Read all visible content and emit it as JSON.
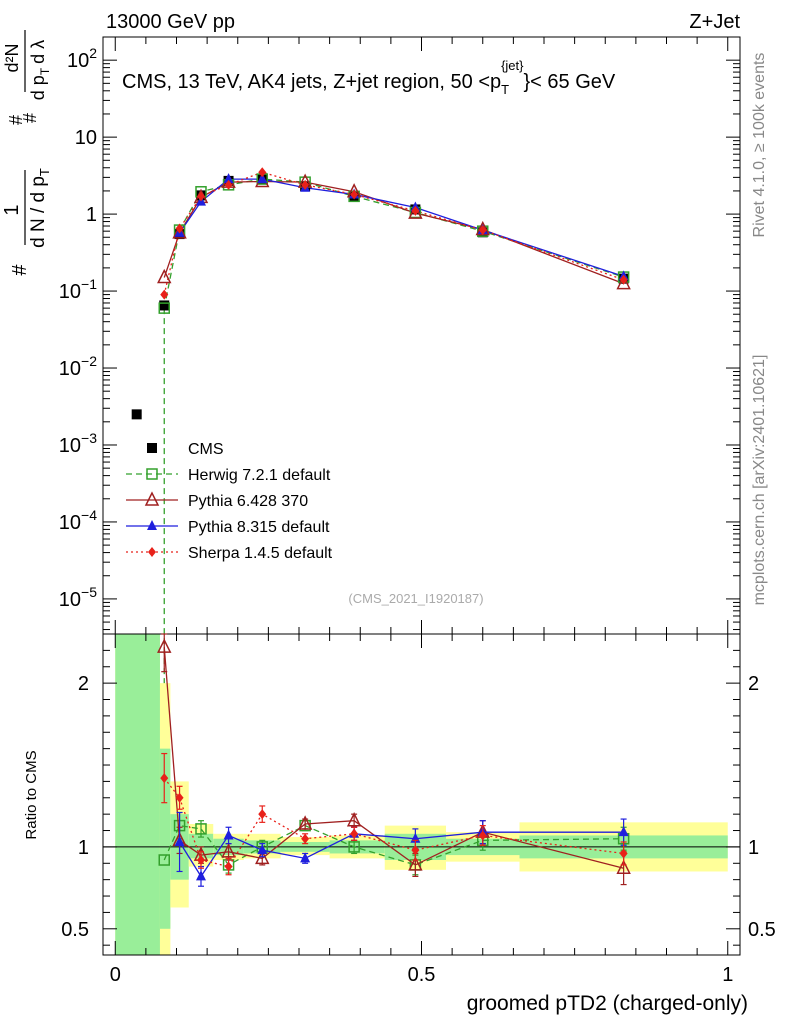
{
  "header": {
    "left": "13000 GeV pp",
    "right": "Z+Jet",
    "side_top": "Rivet 4.1.0, ≥ 100k events",
    "side_bottom": "mcplots.cern.ch [arXiv:2401.10621]"
  },
  "chart_data": {
    "type": "line",
    "title": "CMS, 13 TeV, AK4 jets, Z+jet region, 50 <p_T^{jet}< 65 GeV",
    "title_parts": {
      "pre": "CMS, 13 TeV, AK4 jets, Z+jet region, 50 <p",
      "sup": "{jet}",
      "sub": "T",
      "post": "}< 65 GeV"
    },
    "analysis_id": "(CMS_2021_I1920187)",
    "xlabel": "groomed pTD2 (charged-only)",
    "ylabel": "1/dN/dpT # d²N/dpT dλ",
    "ylabel_parts": {
      "one": "1",
      "hash": "#",
      "dn": "d N / d p",
      "sub": "T",
      "d2n": "d²N",
      "dpt": "d p",
      "dl": "d λ"
    },
    "ratio_ylabel": "Ratio to CMS",
    "xlim": [
      -0.02,
      1.02
    ],
    "ylim_log": [
      3.5e-06,
      200
    ],
    "ratio_ylim": [
      0.34,
      2.3
    ],
    "x_ticks": [
      {
        "value": 0,
        "label": "0"
      },
      {
        "value": 0.5,
        "label": "0.5"
      },
      {
        "value": 1,
        "label": "1"
      }
    ],
    "y_ticks": [
      {
        "value": 1e-05,
        "base": "10",
        "exp": "−5",
        "label": ""
      },
      {
        "value": 0.0001,
        "base": "10",
        "exp": "−4",
        "label": ""
      },
      {
        "value": 0.001,
        "base": "10",
        "exp": "−3",
        "label": ""
      },
      {
        "value": 0.01,
        "base": "10",
        "exp": "−2",
        "label": ""
      },
      {
        "value": 0.1,
        "base": "10",
        "exp": "−1",
        "label": ""
      },
      {
        "value": 1,
        "base": "",
        "exp": "",
        "label": "1"
      },
      {
        "value": 10,
        "base": "",
        "exp": "",
        "label": "10"
      },
      {
        "value": 100,
        "base": "10",
        "exp": "2",
        "label": ""
      }
    ],
    "ratio_ticks": [
      {
        "value": 0.5,
        "label": "0.5"
      },
      {
        "value": 1,
        "label": "1"
      },
      {
        "value": 2,
        "label": "2"
      }
    ],
    "data": {
      "name": "CMS",
      "color": "#000000",
      "x": [
        0.035,
        0.08,
        0.105,
        0.14,
        0.185,
        0.24,
        0.31,
        0.39,
        0.49,
        0.6,
        0.83
      ],
      "y": [
        0.0025,
        0.065,
        0.55,
        1.75,
        2.7,
        2.9,
        2.3,
        1.7,
        1.15,
        0.58,
        0.145
      ]
    },
    "bands": [
      {
        "x0": 0.0,
        "x1": 0.073,
        "inner": [
          0.3,
          2.3
        ],
        "outer": [
          0.3,
          2.3
        ]
      },
      {
        "x0": 0.073,
        "x1": 0.09,
        "inner": [
          0.5,
          1.6
        ],
        "outer": [
          0.3,
          2.0
        ]
      },
      {
        "x0": 0.09,
        "x1": 0.12,
        "inner": [
          0.8,
          1.2
        ],
        "outer": [
          0.63,
          1.4
        ]
      },
      {
        "x0": 0.12,
        "x1": 0.16,
        "inner": [
          0.93,
          1.08
        ],
        "outer": [
          0.88,
          1.14
        ]
      },
      {
        "x0": 0.16,
        "x1": 0.21,
        "inner": [
          0.95,
          1.05
        ],
        "outer": [
          0.92,
          1.08
        ]
      },
      {
        "x0": 0.21,
        "x1": 0.27,
        "inner": [
          0.96,
          1.04
        ],
        "outer": [
          0.93,
          1.08
        ]
      },
      {
        "x0": 0.27,
        "x1": 0.35,
        "inner": [
          0.97,
          1.03
        ],
        "outer": [
          0.95,
          1.06
        ]
      },
      {
        "x0": 0.35,
        "x1": 0.44,
        "inner": [
          0.96,
          1.04
        ],
        "outer": [
          0.93,
          1.07
        ]
      },
      {
        "x0": 0.44,
        "x1": 0.54,
        "inner": [
          0.92,
          1.08
        ],
        "outer": [
          0.86,
          1.13
        ]
      },
      {
        "x0": 0.54,
        "x1": 0.66,
        "inner": [
          0.95,
          1.05
        ],
        "outer": [
          0.91,
          1.09
        ]
      },
      {
        "x0": 0.66,
        "x1": 1.0,
        "inner": [
          0.93,
          1.07
        ],
        "outer": [
          0.85,
          1.15
        ]
      }
    ],
    "series": [
      {
        "name": "Herwig 7.2.1 default",
        "color": "#33a02c",
        "dash": "6,4",
        "marker": "open-square",
        "x": [
          0.08,
          0.105,
          0.14,
          0.185,
          0.24,
          0.31,
          0.39,
          0.49,
          0.6,
          0.83
        ],
        "y": [
          0.06,
          0.62,
          1.95,
          2.4,
          2.85,
          2.6,
          1.7,
          1.05,
          0.6,
          0.152
        ],
        "ratio": [
          0.92,
          1.13,
          1.11,
          0.89,
          1.0,
          1.13,
          1.0,
          0.89,
          1.04,
          1.05
        ],
        "ratio_err": [
          0.0,
          0.08,
          0.05,
          0.05,
          0.04,
          0.03,
          0.04,
          0.06,
          0.06,
          0.07
        ]
      },
      {
        "name": "Pythia 6.428 370",
        "color": "#a02020",
        "dash": "",
        "marker": "open-triangle",
        "x": [
          0.08,
          0.105,
          0.14,
          0.185,
          0.24,
          0.31,
          0.39,
          0.49,
          0.6,
          0.83
        ],
        "y": [
          0.15,
          0.57,
          1.65,
          2.6,
          2.65,
          2.6,
          1.95,
          1.03,
          0.63,
          0.125
        ],
        "ratio": [
          2.22,
          1.04,
          0.95,
          0.97,
          0.93,
          1.14,
          1.16,
          0.89,
          1.09,
          0.87
        ],
        "ratio_err": [
          0.15,
          0.08,
          0.05,
          0.05,
          0.04,
          0.03,
          0.04,
          0.07,
          0.07,
          0.1
        ]
      },
      {
        "name": "Pythia 8.315 default",
        "color": "#1f1fdd",
        "dash": "",
        "marker": "filled-triangle",
        "x": [
          0.105,
          0.14,
          0.185,
          0.24,
          0.31,
          0.39,
          0.49,
          0.6,
          0.83
        ],
        "y": [
          0.57,
          1.45,
          2.85,
          2.85,
          2.2,
          1.8,
          1.22,
          0.62,
          0.155
        ],
        "ratio": [
          1.03,
          0.82,
          1.07,
          0.98,
          0.93,
          1.08,
          1.05,
          1.09,
          1.09
        ],
        "ratio_err": [
          0.18,
          0.06,
          0.05,
          0.04,
          0.03,
          0.04,
          0.06,
          0.07,
          0.08
        ]
      },
      {
        "name": "Sherpa 1.4.5 default",
        "color": "#e8211a",
        "dash": "2,3",
        "marker": "filled-diamond",
        "x": [
          0.08,
          0.105,
          0.14,
          0.185,
          0.24,
          0.31,
          0.39,
          0.49,
          0.6,
          0.83
        ],
        "y": [
          0.09,
          0.65,
          1.7,
          2.4,
          3.5,
          2.4,
          1.8,
          1.1,
          0.62,
          0.14
        ],
        "ratio": [
          1.42,
          1.3,
          0.92,
          0.88,
          1.2,
          1.05,
          1.08,
          0.98,
          1.07,
          0.96
        ],
        "ratio_err": [
          0.15,
          0.07,
          0.05,
          0.05,
          0.05,
          0.03,
          0.04,
          0.06,
          0.06,
          0.07
        ]
      }
    ]
  }
}
